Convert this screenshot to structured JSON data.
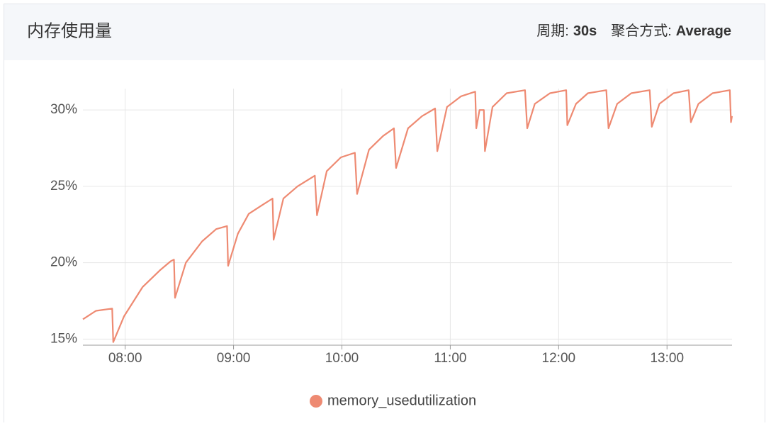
{
  "header": {
    "title": "内存使用量",
    "period_label": "周期:",
    "period_value": "30s",
    "agg_label": "聚合方式:",
    "agg_value": "Average"
  },
  "chart_data": {
    "type": "line",
    "x": [
      7.61,
      7.73,
      7.88,
      7.89,
      7.99,
      8.16,
      8.32,
      8.42,
      8.45,
      8.46,
      8.56,
      8.71,
      8.84,
      8.94,
      8.95,
      9.04,
      9.14,
      9.27,
      9.36,
      9.37,
      9.46,
      9.59,
      9.75,
      9.77,
      9.86,
      9.99,
      10.12,
      10.14,
      10.25,
      10.38,
      10.48,
      10.5,
      10.61,
      10.74,
      10.86,
      10.88,
      10.97,
      11.1,
      11.23,
      11.24,
      11.27,
      11.31,
      11.32,
      11.39,
      11.52,
      11.69,
      11.71,
      11.78,
      11.92,
      12.07,
      12.08,
      12.16,
      12.27,
      12.44,
      12.46,
      12.54,
      12.67,
      12.84,
      12.86,
      12.93,
      13.06,
      13.2,
      13.22,
      13.29,
      13.42,
      13.58,
      13.59,
      13.6
    ],
    "series": [
      {
        "name": "memory_usedutilization",
        "color": "#ee8a72",
        "values": [
          16.3,
          16.85,
          17.0,
          14.8,
          16.5,
          18.4,
          19.5,
          20.1,
          20.2,
          17.7,
          20.0,
          21.4,
          22.2,
          22.4,
          19.8,
          21.9,
          23.2,
          23.8,
          24.2,
          21.5,
          24.2,
          25.0,
          25.7,
          23.1,
          26.0,
          26.9,
          27.2,
          24.5,
          27.4,
          28.3,
          28.8,
          26.2,
          28.8,
          29.6,
          30.1,
          27.3,
          30.2,
          30.9,
          31.2,
          28.8,
          30.0,
          30.0,
          27.3,
          30.2,
          31.1,
          31.3,
          28.8,
          30.4,
          31.1,
          31.3,
          29.0,
          30.4,
          31.1,
          31.3,
          28.8,
          30.4,
          31.1,
          31.3,
          28.9,
          30.4,
          31.1,
          31.3,
          29.2,
          30.4,
          31.1,
          31.3,
          29.2,
          29.6
        ]
      }
    ],
    "xlim": [
      7.61,
      13.6
    ],
    "xticks": [
      {
        "value": 8,
        "label": "08:00"
      },
      {
        "value": 9,
        "label": "09:00"
      },
      {
        "value": 10,
        "label": "10:00"
      },
      {
        "value": 11,
        "label": "11:00"
      },
      {
        "value": 12,
        "label": "12:00"
      },
      {
        "value": 13,
        "label": "13:00"
      }
    ],
    "ylim": [
      14.6,
      31.4
    ],
    "yticks": [
      {
        "value": 15,
        "label": "15%"
      },
      {
        "value": 20,
        "label": "20%"
      },
      {
        "value": 25,
        "label": "25%"
      },
      {
        "value": 30,
        "label": "30%"
      }
    ],
    "grid": true
  }
}
